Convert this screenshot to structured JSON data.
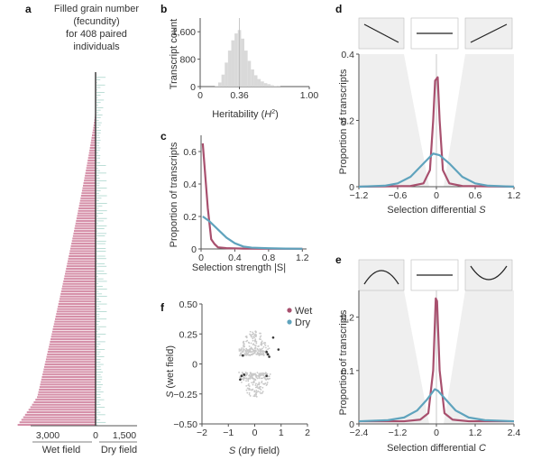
{
  "colors": {
    "wet": "#a8506e",
    "wet_bar": "#d58fa8",
    "dry": "#5fa3bd",
    "axis": "#555555",
    "hist": "#d9d9d9",
    "shade": "#efefef",
    "scatter_gray": "#c8c8c8",
    "scatter_dark": "#333333"
  },
  "chart_data": [
    {
      "panel": "a",
      "type": "bar",
      "title": "Filled grain number (fecundity) for 408 paired individuals",
      "title_lines": [
        "Filled grain number",
        "(fecundity)",
        "for 408 paired",
        "individuals"
      ],
      "n_individuals": 408,
      "left_axis": {
        "label": "Wet field",
        "ticks": [
          "3,000",
          "0"
        ],
        "max": 3500
      },
      "right_axis": {
        "label": "Dry field",
        "ticks": [
          "0",
          "1,500"
        ],
        "max": 1500
      },
      "series": [
        {
          "name": "Wet field",
          "description": "sorted ascending from top; rises to ~3,500 at bottom"
        },
        {
          "name": "Dry field",
          "description": "scattered small values mostly < 600"
        }
      ]
    },
    {
      "panel": "b",
      "type": "bar",
      "title": "",
      "xlabel": "Heritability (H²)",
      "ylabel": "Transcript count",
      "xticks": [
        "0",
        "0.36",
        "1.00"
      ],
      "yticks": [
        "0",
        "800",
        "1,600"
      ],
      "xlim": [
        0,
        1.0
      ],
      "ylim": [
        0,
        2000
      ],
      "marker_line": 0.36,
      "bins": [
        0.15,
        0.18,
        0.21,
        0.24,
        0.27,
        0.3,
        0.33,
        0.36,
        0.39,
        0.42,
        0.45,
        0.48,
        0.51,
        0.54,
        0.57,
        0.6,
        0.63,
        0.66,
        0.69,
        0.72
      ],
      "values": [
        20,
        120,
        350,
        700,
        1050,
        1350,
        1550,
        1650,
        1400,
        1050,
        750,
        500,
        330,
        220,
        150,
        100,
        70,
        40,
        20,
        10
      ]
    },
    {
      "panel": "c",
      "type": "line",
      "xlabel": "Selection strength |S|",
      "ylabel": "Proportion of transcripts",
      "xticks": [
        "0",
        "0.4",
        "0.8",
        "1.2"
      ],
      "yticks": [
        "0",
        "0.2",
        "0.4",
        "0.6"
      ],
      "xlim": [
        0,
        1.25
      ],
      "ylim": [
        0,
        0.7
      ],
      "series": [
        {
          "name": "Wet",
          "x": [
            0.02,
            0.08,
            0.12,
            0.16,
            0.2,
            0.3,
            0.5,
            0.8,
            1.2
          ],
          "y": [
            0.65,
            0.25,
            0.06,
            0.03,
            0.01,
            0.005,
            0.002,
            0.001,
            0.001
          ]
        },
        {
          "name": "Dry",
          "x": [
            0.02,
            0.1,
            0.2,
            0.3,
            0.4,
            0.5,
            0.6,
            0.8,
            1.0,
            1.2
          ],
          "y": [
            0.2,
            0.17,
            0.12,
            0.07,
            0.035,
            0.015,
            0.008,
            0.004,
            0.002,
            0.001
          ]
        }
      ]
    },
    {
      "panel": "d",
      "type": "line",
      "xlabel": "Selection differential S",
      "ylabel": "Proportion of transcripts",
      "xticks": [
        "−1.2",
        "−0.6",
        "0",
        "0.6",
        "1.2"
      ],
      "yticks": [
        "0",
        "0.2",
        "0.4"
      ],
      "xlim": [
        -1.2,
        1.2
      ],
      "ylim": [
        0,
        0.4
      ],
      "insets": [
        "negative-linear",
        "flat",
        "positive-linear"
      ],
      "series": [
        {
          "name": "Wet",
          "x": [
            -1.2,
            -0.4,
            -0.2,
            -0.1,
            -0.05,
            -0.02,
            0.02,
            0.05,
            0.1,
            0.2,
            0.4,
            1.2
          ],
          "y": [
            0,
            0.002,
            0.01,
            0.05,
            0.2,
            0.32,
            0.33,
            0.2,
            0.05,
            0.01,
            0.002,
            0
          ]
        },
        {
          "name": "Dry",
          "x": [
            -1.2,
            -0.8,
            -0.6,
            -0.4,
            -0.2,
            -0.05,
            0.05,
            0.2,
            0.4,
            0.6,
            0.8,
            1.2
          ],
          "y": [
            0,
            0.003,
            0.01,
            0.03,
            0.07,
            0.1,
            0.095,
            0.07,
            0.03,
            0.01,
            0.003,
            0
          ]
        }
      ]
    },
    {
      "panel": "e",
      "type": "line",
      "xlabel": "Selection differential C",
      "ylabel": "Proportion of transcripts",
      "xticks": [
        "−2.4",
        "−1.2",
        "0",
        "1.2",
        "2.4"
      ],
      "yticks": [
        "0",
        "0.1",
        "0.2"
      ],
      "xlim": [
        -2.4,
        2.4
      ],
      "ylim": [
        0,
        0.25
      ],
      "insets": [
        "concave",
        "flat",
        "convex"
      ],
      "series": [
        {
          "name": "Wet",
          "x": [
            -2.4,
            -1.0,
            -0.5,
            -0.25,
            -0.1,
            -0.02,
            0.02,
            0.1,
            0.25,
            0.5,
            1.0,
            2.4
          ],
          "y": [
            0.005,
            0.005,
            0.008,
            0.02,
            0.1,
            0.235,
            0.23,
            0.1,
            0.02,
            0.008,
            0.005,
            0.005
          ]
        },
        {
          "name": "Dry",
          "x": [
            -2.4,
            -1.5,
            -1.0,
            -0.6,
            -0.3,
            -0.05,
            0.05,
            0.3,
            0.6,
            1.0,
            1.5,
            2.4
          ],
          "y": [
            0.005,
            0.007,
            0.012,
            0.025,
            0.045,
            0.065,
            0.062,
            0.045,
            0.025,
            0.012,
            0.007,
            0.005
          ]
        }
      ]
    },
    {
      "panel": "f",
      "type": "scatter",
      "xlabel": "S (dry field)",
      "ylabel": "S (wet field)",
      "xticks": [
        "−2",
        "−1",
        "0",
        "1",
        "2"
      ],
      "yticks": [
        "−0.50",
        "−0.25",
        "0",
        "0.25",
        "0.50"
      ],
      "xlim": [
        -2,
        2
      ],
      "ylim": [
        -0.5,
        0.5
      ],
      "legend": [
        {
          "name": "Wet",
          "color_key": "wet"
        },
        {
          "name": "Dry",
          "color_key": "dry"
        }
      ],
      "legend_position": "top-right",
      "highlight_points": [
        {
          "x": 0.7,
          "y": 0.22
        },
        {
          "x": 0.9,
          "y": 0.12
        },
        {
          "x": 0.45,
          "y": 0.1
        },
        {
          "x": 0.55,
          "y": 0.06
        },
        {
          "x": -0.45,
          "y": 0.07
        },
        {
          "x": 0.5,
          "y": 0.08
        },
        {
          "x": -0.5,
          "y": -0.1
        },
        {
          "x": -0.55,
          "y": -0.13
        },
        {
          "x": -0.4,
          "y": -0.09
        },
        {
          "x": 0.45,
          "y": -0.1
        }
      ]
    }
  ]
}
